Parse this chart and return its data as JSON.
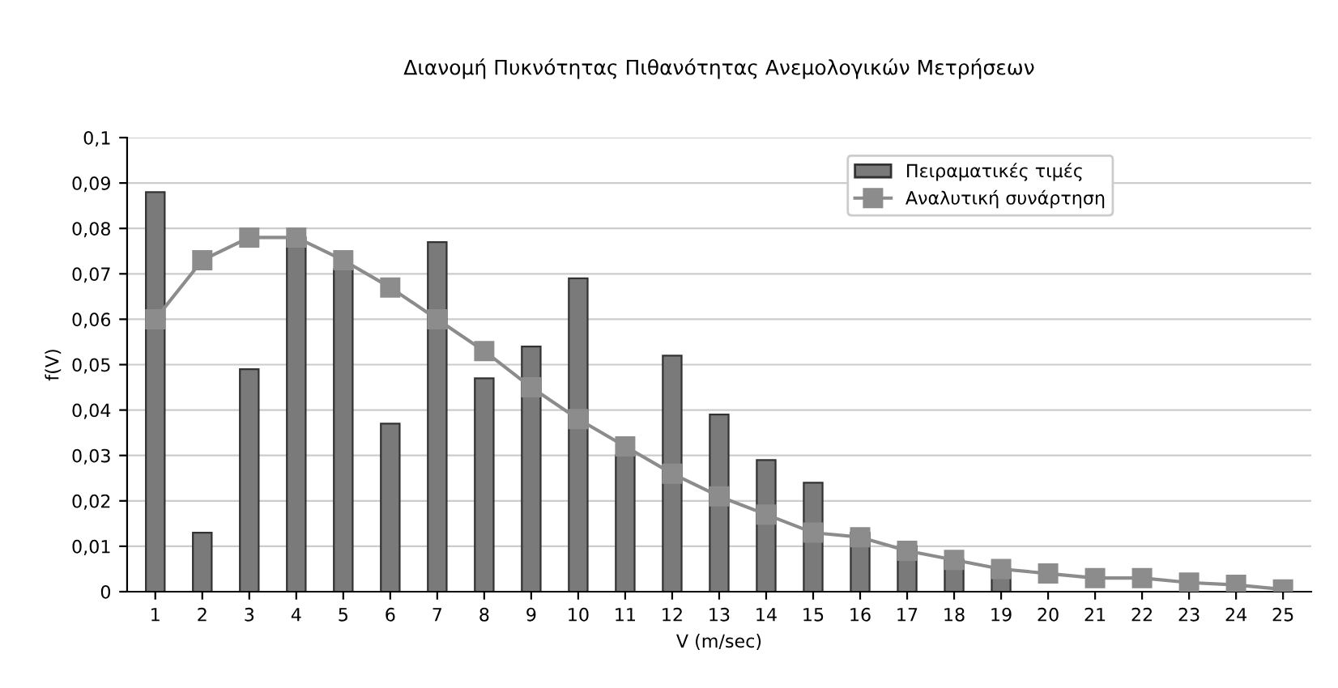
{
  "chart_data": {
    "type": "bar",
    "title": "Διανομή Πυκνότητας Πιθανότητας Ανεμολογικών Μετρήσεων",
    "xlabel": "V (m/sec)",
    "ylabel": "f(V)",
    "categories": [
      "1",
      "2",
      "3",
      "4",
      "5",
      "6",
      "7",
      "8",
      "9",
      "10",
      "11",
      "12",
      "13",
      "14",
      "15",
      "16",
      "17",
      "18",
      "19",
      "20",
      "21",
      "22",
      "23",
      "24",
      "25"
    ],
    "series": [
      {
        "name": "Πειραματικές τιμές",
        "color": "#7a7a7a",
        "values": [
          0.088,
          0.013,
          0.049,
          0.078,
          0.071,
          0.037,
          0.077,
          0.047,
          0.054,
          0.069,
          0.03,
          0.052,
          0.039,
          0.029,
          0.024,
          0.013,
          0.01,
          0.007,
          0.005,
          null,
          null,
          null,
          null,
          null,
          null
        ]
      },
      {
        "name": "Αναλυτική συνάρτηση",
        "type": "line",
        "color": "#8c8c8c",
        "marker": "square",
        "values": [
          0.06,
          0.073,
          0.078,
          0.078,
          0.073,
          0.067,
          0.06,
          0.053,
          0.045,
          0.038,
          0.032,
          0.026,
          0.021,
          0.017,
          0.013,
          0.012,
          0.009,
          0.007,
          0.005,
          0.004,
          0.003,
          0.003,
          0.002,
          0.0015,
          0.0005
        ]
      }
    ],
    "ylim": [
      0,
      0.1
    ],
    "yticks": [
      {
        "value": 0,
        "label": "0"
      },
      {
        "value": 0.01,
        "label": "0,01"
      },
      {
        "value": 0.02,
        "label": "0,02"
      },
      {
        "value": 0.03,
        "label": "0,03"
      },
      {
        "value": 0.04,
        "label": "0,04"
      },
      {
        "value": 0.05,
        "label": "0,05"
      },
      {
        "value": 0.06,
        "label": "0,06"
      },
      {
        "value": 0.07,
        "label": "0,07"
      },
      {
        "value": 0.08,
        "label": "0,08"
      },
      {
        "value": 0.09,
        "label": "0,09"
      },
      {
        "value": 0.1,
        "label": "0,1"
      }
    ],
    "grid": "y",
    "legend": "top right"
  }
}
